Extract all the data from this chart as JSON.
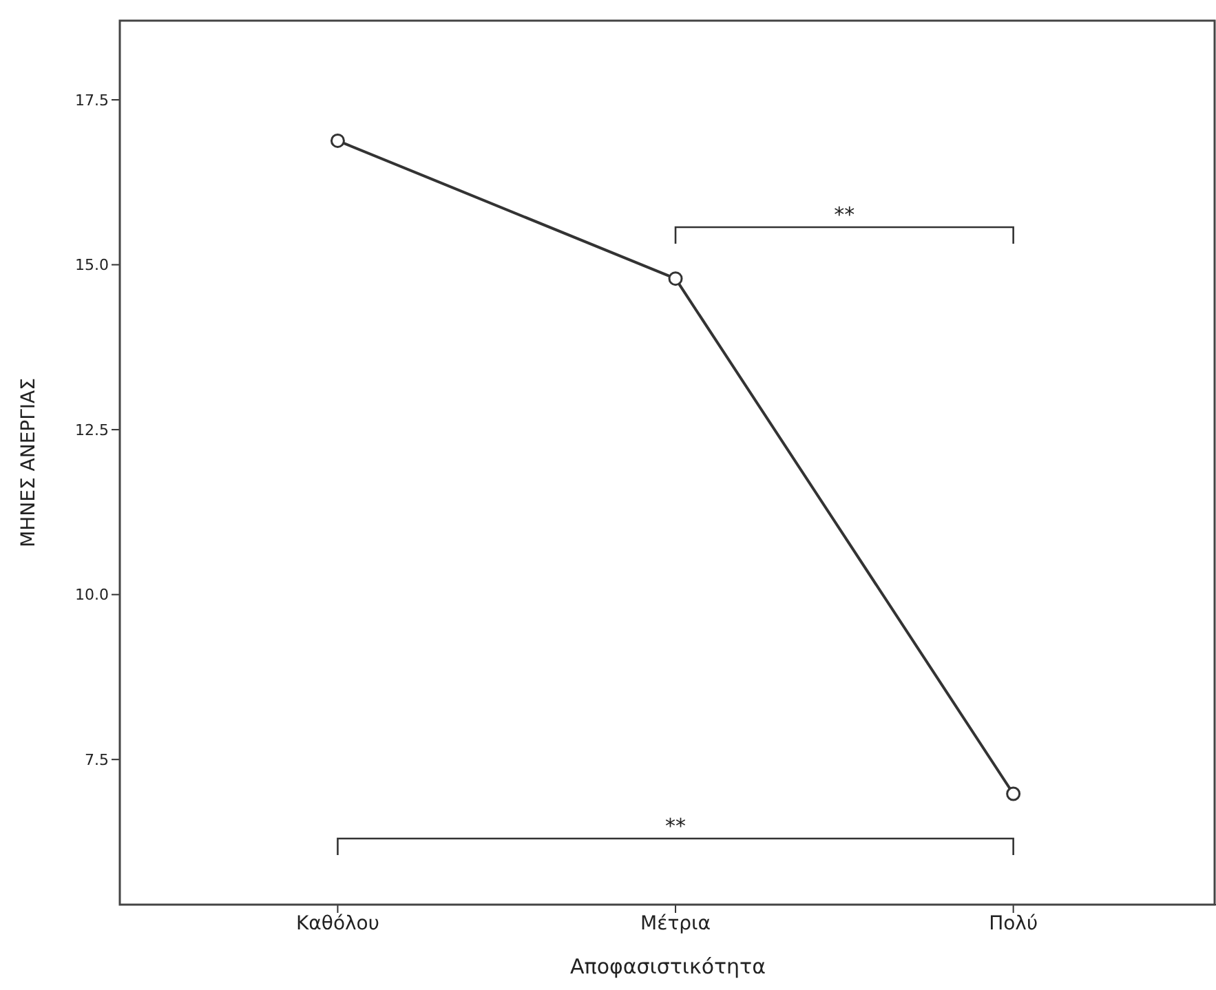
{
  "chart_data": {
    "type": "line",
    "xlabel": "Αποφασιστικότητα",
    "ylabel": "ΜΗΝΕΣ ΑΝΕΡΓΙΑΣ",
    "categories": [
      "Καθόλου",
      "Μέτρια",
      "Πολύ"
    ],
    "series": [
      {
        "color": "#333333",
        "values": [
          16.88,
          14.79,
          6.98
        ]
      }
    ],
    "ylim": [
      5.3,
      18.7
    ],
    "yticks": [
      {
        "value": 7.5,
        "label": "7.5"
      },
      {
        "value": 10,
        "label": "10.0"
      },
      {
        "value": 12.5,
        "label": "12.5"
      },
      {
        "value": 15,
        "label": "15.0"
      },
      {
        "value": 17.5,
        "label": "17.5"
      }
    ],
    "marker": "circle",
    "line_style": "solid",
    "annotations": [
      "**",
      "**"
    ]
  }
}
